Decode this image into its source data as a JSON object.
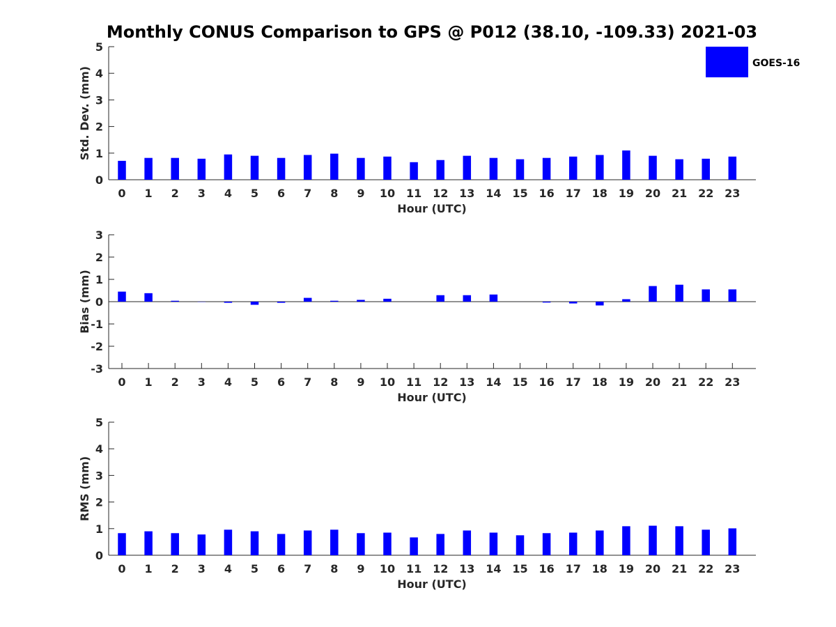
{
  "chart_data": {
    "type": "bar",
    "title": "Monthly CONUS Comparison to GPS @ P012 (38.10, -109.33) 2021-03",
    "legend": {
      "label": "GOES-16",
      "placement": "top-right"
    },
    "series_color": "#0000ff",
    "categories": [
      "0",
      "1",
      "2",
      "3",
      "4",
      "5",
      "6",
      "7",
      "8",
      "9",
      "10",
      "11",
      "12",
      "13",
      "14",
      "15",
      "16",
      "17",
      "18",
      "19",
      "20",
      "21",
      "22",
      "23"
    ],
    "panels": [
      {
        "id": "stddev",
        "ylabel": "Std. Dev. (mm)",
        "xlabel": "Hour (UTC)",
        "ylim": [
          0,
          5
        ],
        "yticks": [
          0,
          1,
          2,
          3,
          4,
          5
        ],
        "values": [
          0.71,
          0.82,
          0.82,
          0.79,
          0.95,
          0.9,
          0.82,
          0.93,
          0.98,
          0.82,
          0.87,
          0.66,
          0.74,
          0.9,
          0.82,
          0.77,
          0.82,
          0.87,
          0.93,
          1.1,
          0.9,
          0.77,
          0.79,
          0.87
        ]
      },
      {
        "id": "bias",
        "ylabel": "Bias (mm)",
        "xlabel": "Hour (UTC)",
        "ylim": [
          -3,
          3
        ],
        "yticks": [
          -3,
          -2,
          -1,
          0,
          1,
          2,
          3
        ],
        "values": [
          0.45,
          0.38,
          0.04,
          -0.01,
          -0.05,
          -0.14,
          -0.05,
          0.17,
          0.04,
          0.08,
          0.13,
          0.0,
          0.29,
          0.29,
          0.32,
          0.0,
          -0.04,
          -0.08,
          -0.17,
          0.11,
          0.7,
          0.76,
          0.55,
          0.55
        ]
      },
      {
        "id": "rms",
        "ylabel": "RMS (mm)",
        "xlabel": "Hour (UTC)",
        "ylim": [
          0,
          5
        ],
        "yticks": [
          0,
          1,
          2,
          3,
          4,
          5
        ],
        "values": [
          0.83,
          0.9,
          0.83,
          0.78,
          0.96,
          0.9,
          0.8,
          0.93,
          0.96,
          0.83,
          0.85,
          0.67,
          0.8,
          0.93,
          0.85,
          0.75,
          0.83,
          0.85,
          0.93,
          1.09,
          1.11,
          1.09,
          0.96,
          1.01
        ]
      }
    ]
  }
}
